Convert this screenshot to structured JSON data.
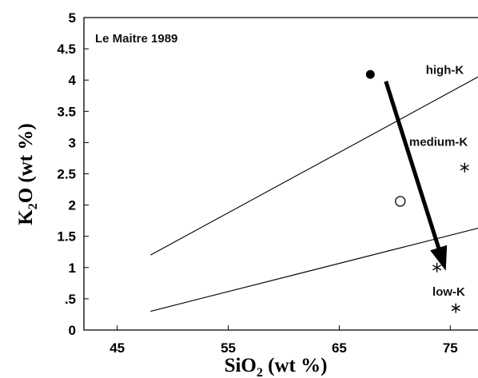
{
  "chart_data": {
    "type": "scatter",
    "annotation": "Le Maitre 1989",
    "xlabel": {
      "base": "SiO",
      "sub": "2",
      "suffix": "  (wt %)"
    },
    "ylabel": {
      "base": "K",
      "sub": "2",
      "suffix": "O  (wt %)"
    },
    "xlim": [
      42,
      77.5
    ],
    "ylim": [
      0,
      5
    ],
    "xticks": [
      {
        "value": 45,
        "label": "45"
      },
      {
        "value": 55,
        "label": "55"
      },
      {
        "value": 65,
        "label": "65"
      },
      {
        "value": 75,
        "label": "75"
      }
    ],
    "yticks": [
      {
        "value": 0,
        "label": "0"
      },
      {
        "value": 0.5,
        "label": ".5"
      },
      {
        "value": 1,
        "label": "1"
      },
      {
        "value": 1.5,
        "label": "1.5"
      },
      {
        "value": 2,
        "label": "2"
      },
      {
        "value": 2.5,
        "label": "2.5"
      },
      {
        "value": 3,
        "label": "3"
      },
      {
        "value": 3.5,
        "label": "3.5"
      },
      {
        "value": 4,
        "label": "4"
      },
      {
        "value": 4.5,
        "label": "4.5"
      },
      {
        "value": 5,
        "label": "5"
      }
    ],
    "boundary_lines": [
      {
        "x": [
          48,
          77.5
        ],
        "y": [
          1.2,
          4.05
        ]
      },
      {
        "x": [
          48,
          77.5
        ],
        "y": [
          0.3,
          1.63
        ]
      }
    ],
    "field_labels": [
      {
        "text": "high-K",
        "x": 72.8,
        "y": 4.1
      },
      {
        "text": "medium-K",
        "x": 71.3,
        "y": 2.95
      },
      {
        "text": "low-K",
        "x": 73.4,
        "y": 0.55
      }
    ],
    "points": [
      {
        "x": 67.8,
        "y": 4.09,
        "marker": "filled-circle"
      },
      {
        "x": 70.5,
        "y": 2.06,
        "marker": "open-circle"
      },
      {
        "x": 76.3,
        "y": 2.6,
        "marker": "asterisk"
      },
      {
        "x": 73.8,
        "y": 1.0,
        "marker": "asterisk"
      },
      {
        "x": 75.5,
        "y": 0.35,
        "marker": "asterisk"
      }
    ],
    "arrow": {
      "from": [
        69.2,
        3.98
      ],
      "to": [
        74.6,
        0.95
      ]
    },
    "colors": {
      "ink": "#000000",
      "background": "#ffffff"
    }
  }
}
